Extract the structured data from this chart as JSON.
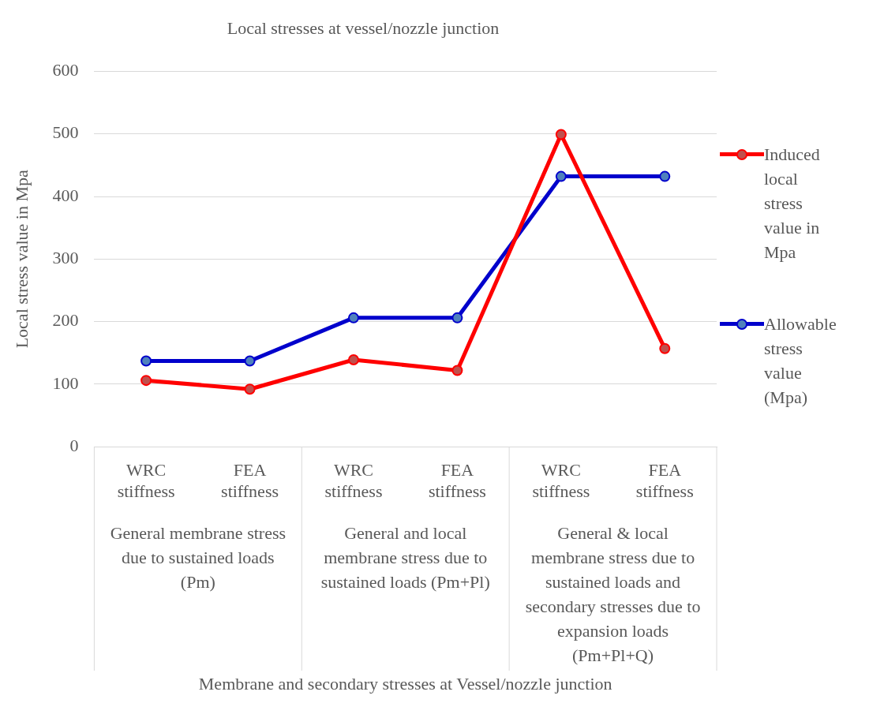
{
  "chart_data": {
    "type": "line",
    "title": "Local stresses at vessel/nozzle junction",
    "ylabel": "Local stress value in Mpa",
    "categories": [
      "WRC stiffness",
      "FEA stiffness",
      "WRC stiffness",
      "FEA stiffness",
      "WRC stiffness",
      "FEA stiffness"
    ],
    "series": [
      {
        "name": "Induced local stress value in Mpa",
        "color": "#ff0000",
        "values": [
          106,
          92,
          139,
          122,
          499,
          157
        ]
      },
      {
        "name": "Allowable stress value (Mpa)",
        "color": "#0000cc",
        "values": [
          137,
          137,
          206,
          206,
          432,
          432
        ]
      }
    ],
    "annotations": [
      "General membrane stress due to sustained loads (Pm)",
      "General and local membrane stress due to sustained loads (Pm+Pl)",
      "General & local membrane stress due to sustained loads and secondary stresses due to expansion loads (Pm+Pl+Q)",
      "Membrane and secondary stresses at Vessel/nozzle junction"
    ],
    "ylim": [
      0,
      600
    ],
    "yticks": [
      0,
      100,
      200,
      300,
      400,
      500,
      600
    ],
    "grid": "y",
    "legend": "right",
    "marker": "circle",
    "line_style": "solid"
  }
}
